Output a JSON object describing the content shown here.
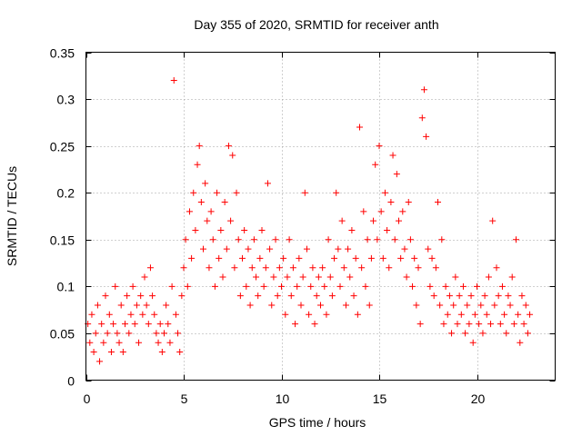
{
  "chart_data": {
    "type": "scatter",
    "title": "Day 355 of 2020, SRMTID for receiver anth",
    "xlabel": "GPS time / hours",
    "ylabel": "SRMTID / TECUs",
    "xlim": [
      0,
      24
    ],
    "ylim": [
      0,
      0.35
    ],
    "xticks": [
      0,
      5,
      10,
      15,
      20
    ],
    "xtick_labels": [
      "0",
      "5",
      "10",
      "15",
      "20"
    ],
    "yticks": [
      0,
      0.05,
      0.1,
      0.15,
      0.2,
      0.25,
      0.3,
      0.35
    ],
    "ytick_labels": [
      "0",
      "0.05",
      "0.1",
      "0.15",
      "0.2",
      "0.25",
      "0.3",
      "0.35"
    ],
    "grid": true,
    "marker": "plus",
    "color": "#ff0000",
    "series": [
      {
        "name": "SRMTID",
        "points": [
          [
            0.1,
            0.06
          ],
          [
            0.2,
            0.04
          ],
          [
            0.3,
            0.07
          ],
          [
            0.4,
            0.03
          ],
          [
            0.5,
            0.05
          ],
          [
            0.6,
            0.08
          ],
          [
            0.7,
            0.02
          ],
          [
            0.8,
            0.06
          ],
          [
            0.9,
            0.04
          ],
          [
            1.0,
            0.09
          ],
          [
            1.1,
            0.05
          ],
          [
            1.2,
            0.07
          ],
          [
            1.3,
            0.03
          ],
          [
            1.4,
            0.06
          ],
          [
            1.5,
            0.1
          ],
          [
            1.6,
            0.05
          ],
          [
            1.7,
            0.04
          ],
          [
            1.8,
            0.08
          ],
          [
            1.9,
            0.03
          ],
          [
            2.0,
            0.06
          ],
          [
            2.1,
            0.09
          ],
          [
            2.2,
            0.05
          ],
          [
            2.3,
            0.07
          ],
          [
            2.4,
            0.1
          ],
          [
            2.5,
            0.06
          ],
          [
            2.6,
            0.08
          ],
          [
            2.7,
            0.04
          ],
          [
            2.8,
            0.09
          ],
          [
            2.9,
            0.07
          ],
          [
            3.0,
            0.11
          ],
          [
            3.1,
            0.08
          ],
          [
            3.2,
            0.06
          ],
          [
            3.3,
            0.12
          ],
          [
            3.4,
            0.09
          ],
          [
            3.5,
            0.07
          ],
          [
            3.6,
            0.05
          ],
          [
            3.7,
            0.04
          ],
          [
            3.8,
            0.06
          ],
          [
            3.9,
            0.03
          ],
          [
            4.0,
            0.05
          ],
          [
            4.1,
            0.08
          ],
          [
            4.2,
            0.06
          ],
          [
            4.3,
            0.04
          ],
          [
            4.4,
            0.1
          ],
          [
            4.5,
            0.32
          ],
          [
            4.6,
            0.07
          ],
          [
            4.7,
            0.05
          ],
          [
            4.8,
            0.03
          ],
          [
            4.9,
            0.09
          ],
          [
            5.0,
            0.12
          ],
          [
            5.1,
            0.15
          ],
          [
            5.2,
            0.1
          ],
          [
            5.3,
            0.18
          ],
          [
            5.4,
            0.13
          ],
          [
            5.5,
            0.2
          ],
          [
            5.6,
            0.16
          ],
          [
            5.7,
            0.23
          ],
          [
            5.8,
            0.25
          ],
          [
            5.9,
            0.19
          ],
          [
            6.0,
            0.14
          ],
          [
            6.1,
            0.21
          ],
          [
            6.2,
            0.17
          ],
          [
            6.3,
            0.12
          ],
          [
            6.4,
            0.18
          ],
          [
            6.5,
            0.15
          ],
          [
            6.6,
            0.1
          ],
          [
            6.7,
            0.2
          ],
          [
            6.8,
            0.13
          ],
          [
            6.9,
            0.16
          ],
          [
            7.0,
            0.11
          ],
          [
            7.1,
            0.19
          ],
          [
            7.2,
            0.14
          ],
          [
            7.3,
            0.25
          ],
          [
            7.4,
            0.17
          ],
          [
            7.5,
            0.24
          ],
          [
            7.6,
            0.12
          ],
          [
            7.7,
            0.2
          ],
          [
            7.8,
            0.15
          ],
          [
            7.9,
            0.09
          ],
          [
            8.0,
            0.13
          ],
          [
            8.1,
            0.16
          ],
          [
            8.2,
            0.1
          ],
          [
            8.3,
            0.14
          ],
          [
            8.4,
            0.08
          ],
          [
            8.5,
            0.12
          ],
          [
            8.6,
            0.15
          ],
          [
            8.7,
            0.11
          ],
          [
            8.8,
            0.09
          ],
          [
            8.9,
            0.13
          ],
          [
            9.0,
            0.16
          ],
          [
            9.1,
            0.1
          ],
          [
            9.2,
            0.12
          ],
          [
            9.3,
            0.21
          ],
          [
            9.4,
            0.14
          ],
          [
            9.5,
            0.08
          ],
          [
            9.6,
            0.11
          ],
          [
            9.7,
            0.15
          ],
          [
            9.8,
            0.09
          ],
          [
            9.9,
            0.12
          ],
          [
            10.0,
            0.1
          ],
          [
            10.1,
            0.13
          ],
          [
            10.2,
            0.07
          ],
          [
            10.3,
            0.11
          ],
          [
            10.4,
            0.15
          ],
          [
            10.5,
            0.09
          ],
          [
            10.6,
            0.12
          ],
          [
            10.7,
            0.06
          ],
          [
            10.8,
            0.1
          ],
          [
            10.9,
            0.13
          ],
          [
            11.0,
            0.08
          ],
          [
            11.1,
            0.11
          ],
          [
            11.2,
            0.2
          ],
          [
            11.3,
            0.14
          ],
          [
            11.4,
            0.07
          ],
          [
            11.5,
            0.1
          ],
          [
            11.6,
            0.12
          ],
          [
            11.7,
            0.06
          ],
          [
            11.8,
            0.09
          ],
          [
            11.9,
            0.11
          ],
          [
            12.0,
            0.08
          ],
          [
            12.1,
            0.12
          ],
          [
            12.2,
            0.1
          ],
          [
            12.3,
            0.07
          ],
          [
            12.4,
            0.15
          ],
          [
            12.5,
            0.11
          ],
          [
            12.6,
            0.09
          ],
          [
            12.7,
            0.13
          ],
          [
            12.8,
            0.2
          ],
          [
            12.9,
            0.14
          ],
          [
            13.0,
            0.1
          ],
          [
            13.1,
            0.17
          ],
          [
            13.2,
            0.12
          ],
          [
            13.3,
            0.08
          ],
          [
            13.4,
            0.14
          ],
          [
            13.5,
            0.11
          ],
          [
            13.6,
            0.16
          ],
          [
            13.7,
            0.09
          ],
          [
            13.8,
            0.13
          ],
          [
            13.9,
            0.07
          ],
          [
            14.0,
            0.27
          ],
          [
            14.1,
            0.12
          ],
          [
            14.2,
            0.18
          ],
          [
            14.3,
            0.1
          ],
          [
            14.4,
            0.15
          ],
          [
            14.5,
            0.08
          ],
          [
            14.6,
            0.13
          ],
          [
            14.7,
            0.17
          ],
          [
            14.8,
            0.23
          ],
          [
            14.9,
            0.15
          ],
          [
            15.0,
            0.25
          ],
          [
            15.1,
            0.18
          ],
          [
            15.2,
            0.13
          ],
          [
            15.3,
            0.2
          ],
          [
            15.4,
            0.16
          ],
          [
            15.5,
            0.12
          ],
          [
            15.6,
            0.19
          ],
          [
            15.7,
            0.24
          ],
          [
            15.8,
            0.15
          ],
          [
            15.9,
            0.22
          ],
          [
            16.0,
            0.17
          ],
          [
            16.1,
            0.13
          ],
          [
            16.2,
            0.18
          ],
          [
            16.3,
            0.14
          ],
          [
            16.4,
            0.11
          ],
          [
            16.5,
            0.19
          ],
          [
            16.6,
            0.15
          ],
          [
            16.7,
            0.1
          ],
          [
            16.8,
            0.13
          ],
          [
            16.9,
            0.08
          ],
          [
            17.0,
            0.12
          ],
          [
            17.1,
            0.06
          ],
          [
            17.2,
            0.28
          ],
          [
            17.3,
            0.31
          ],
          [
            17.4,
            0.26
          ],
          [
            17.5,
            0.14
          ],
          [
            17.6,
            0.1
          ],
          [
            17.7,
            0.13
          ],
          [
            17.8,
            0.09
          ],
          [
            17.9,
            0.12
          ],
          [
            18.0,
            0.19
          ],
          [
            18.1,
            0.08
          ],
          [
            18.2,
            0.15
          ],
          [
            18.3,
            0.06
          ],
          [
            18.4,
            0.1
          ],
          [
            18.5,
            0.07
          ],
          [
            18.6,
            0.09
          ],
          [
            18.7,
            0.05
          ],
          [
            18.8,
            0.08
          ],
          [
            18.9,
            0.11
          ],
          [
            19.0,
            0.06
          ],
          [
            19.1,
            0.09
          ],
          [
            19.2,
            0.07
          ],
          [
            19.3,
            0.1
          ],
          [
            19.4,
            0.05
          ],
          [
            19.5,
            0.08
          ],
          [
            19.6,
            0.06
          ],
          [
            19.7,
            0.09
          ],
          [
            19.8,
            0.04
          ],
          [
            19.9,
            0.07
          ],
          [
            20.0,
            0.1
          ],
          [
            20.1,
            0.06
          ],
          [
            20.2,
            0.08
          ],
          [
            20.3,
            0.05
          ],
          [
            20.4,
            0.09
          ],
          [
            20.5,
            0.07
          ],
          [
            20.6,
            0.11
          ],
          [
            20.7,
            0.06
          ],
          [
            20.8,
            0.17
          ],
          [
            20.9,
            0.08
          ],
          [
            21.0,
            0.12
          ],
          [
            21.1,
            0.09
          ],
          [
            21.2,
            0.06
          ],
          [
            21.3,
            0.1
          ],
          [
            21.4,
            0.07
          ],
          [
            21.5,
            0.05
          ],
          [
            21.6,
            0.09
          ],
          [
            21.7,
            0.08
          ],
          [
            21.8,
            0.11
          ],
          [
            21.9,
            0.06
          ],
          [
            22.0,
            0.15
          ],
          [
            22.1,
            0.07
          ],
          [
            22.2,
            0.04
          ],
          [
            22.3,
            0.09
          ],
          [
            22.4,
            0.06
          ],
          [
            22.5,
            0.08
          ],
          [
            22.6,
            0.05
          ],
          [
            22.7,
            0.07
          ]
        ]
      }
    ]
  }
}
